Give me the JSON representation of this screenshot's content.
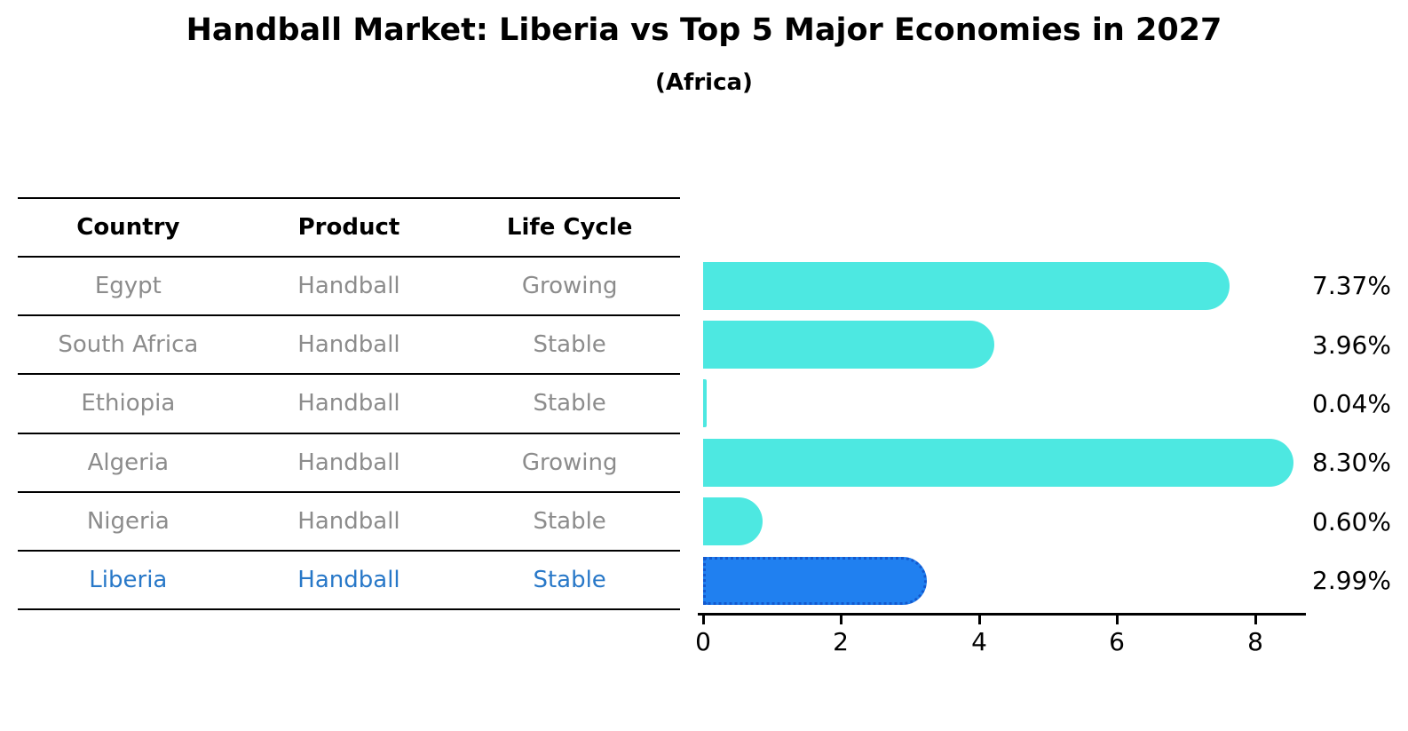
{
  "title": "Handball Market: Liberia vs Top 5 Major Economies in 2027",
  "subtitle": "(Africa)",
  "table": {
    "headers": {
      "country": "Country",
      "product": "Product",
      "life_cycle": "Life Cycle"
    },
    "rows": [
      {
        "country": "Egypt",
        "product": "Handball",
        "life_cycle": "Growing",
        "highlight": false
      },
      {
        "country": "South Africa",
        "product": "Handball",
        "life_cycle": "Stable",
        "highlight": false
      },
      {
        "country": "Ethiopia",
        "product": "Handball",
        "life_cycle": "Stable",
        "highlight": false
      },
      {
        "country": "Algeria",
        "product": "Handball",
        "life_cycle": "Growing",
        "highlight": false
      },
      {
        "country": "Nigeria",
        "product": "Handball",
        "life_cycle": "Stable",
        "highlight": false
      },
      {
        "country": "Liberia",
        "product": "Handball",
        "life_cycle": "Stable",
        "highlight": true
      }
    ]
  },
  "chart_data": {
    "type": "bar",
    "orientation": "horizontal",
    "title": "Handball Market: Liberia vs Top 5 Major Economies in 2027",
    "subtitle": "(Africa)",
    "categories": [
      "Egypt",
      "South Africa",
      "Ethiopia",
      "Algeria",
      "Nigeria",
      "Liberia"
    ],
    "values": [
      7.37,
      3.96,
      0.04,
      8.3,
      0.6,
      2.99
    ],
    "value_labels": [
      "7.37%",
      "3.96%",
      "0.04%",
      "8.30%",
      "0.60%",
      "2.99%"
    ],
    "x_ticks": [
      "0",
      "2",
      "4",
      "6",
      "8"
    ],
    "xlim": [
      0,
      8.8
    ],
    "grid": false,
    "legend": false,
    "highlight_index": 5,
    "bar_color": "#4de8e1",
    "highlight_bar_color": "#2080f0",
    "highlight_border_color": "#1459ce",
    "highlight_text_color": "#2878c8",
    "row_text_color": "#8c8c8c"
  }
}
